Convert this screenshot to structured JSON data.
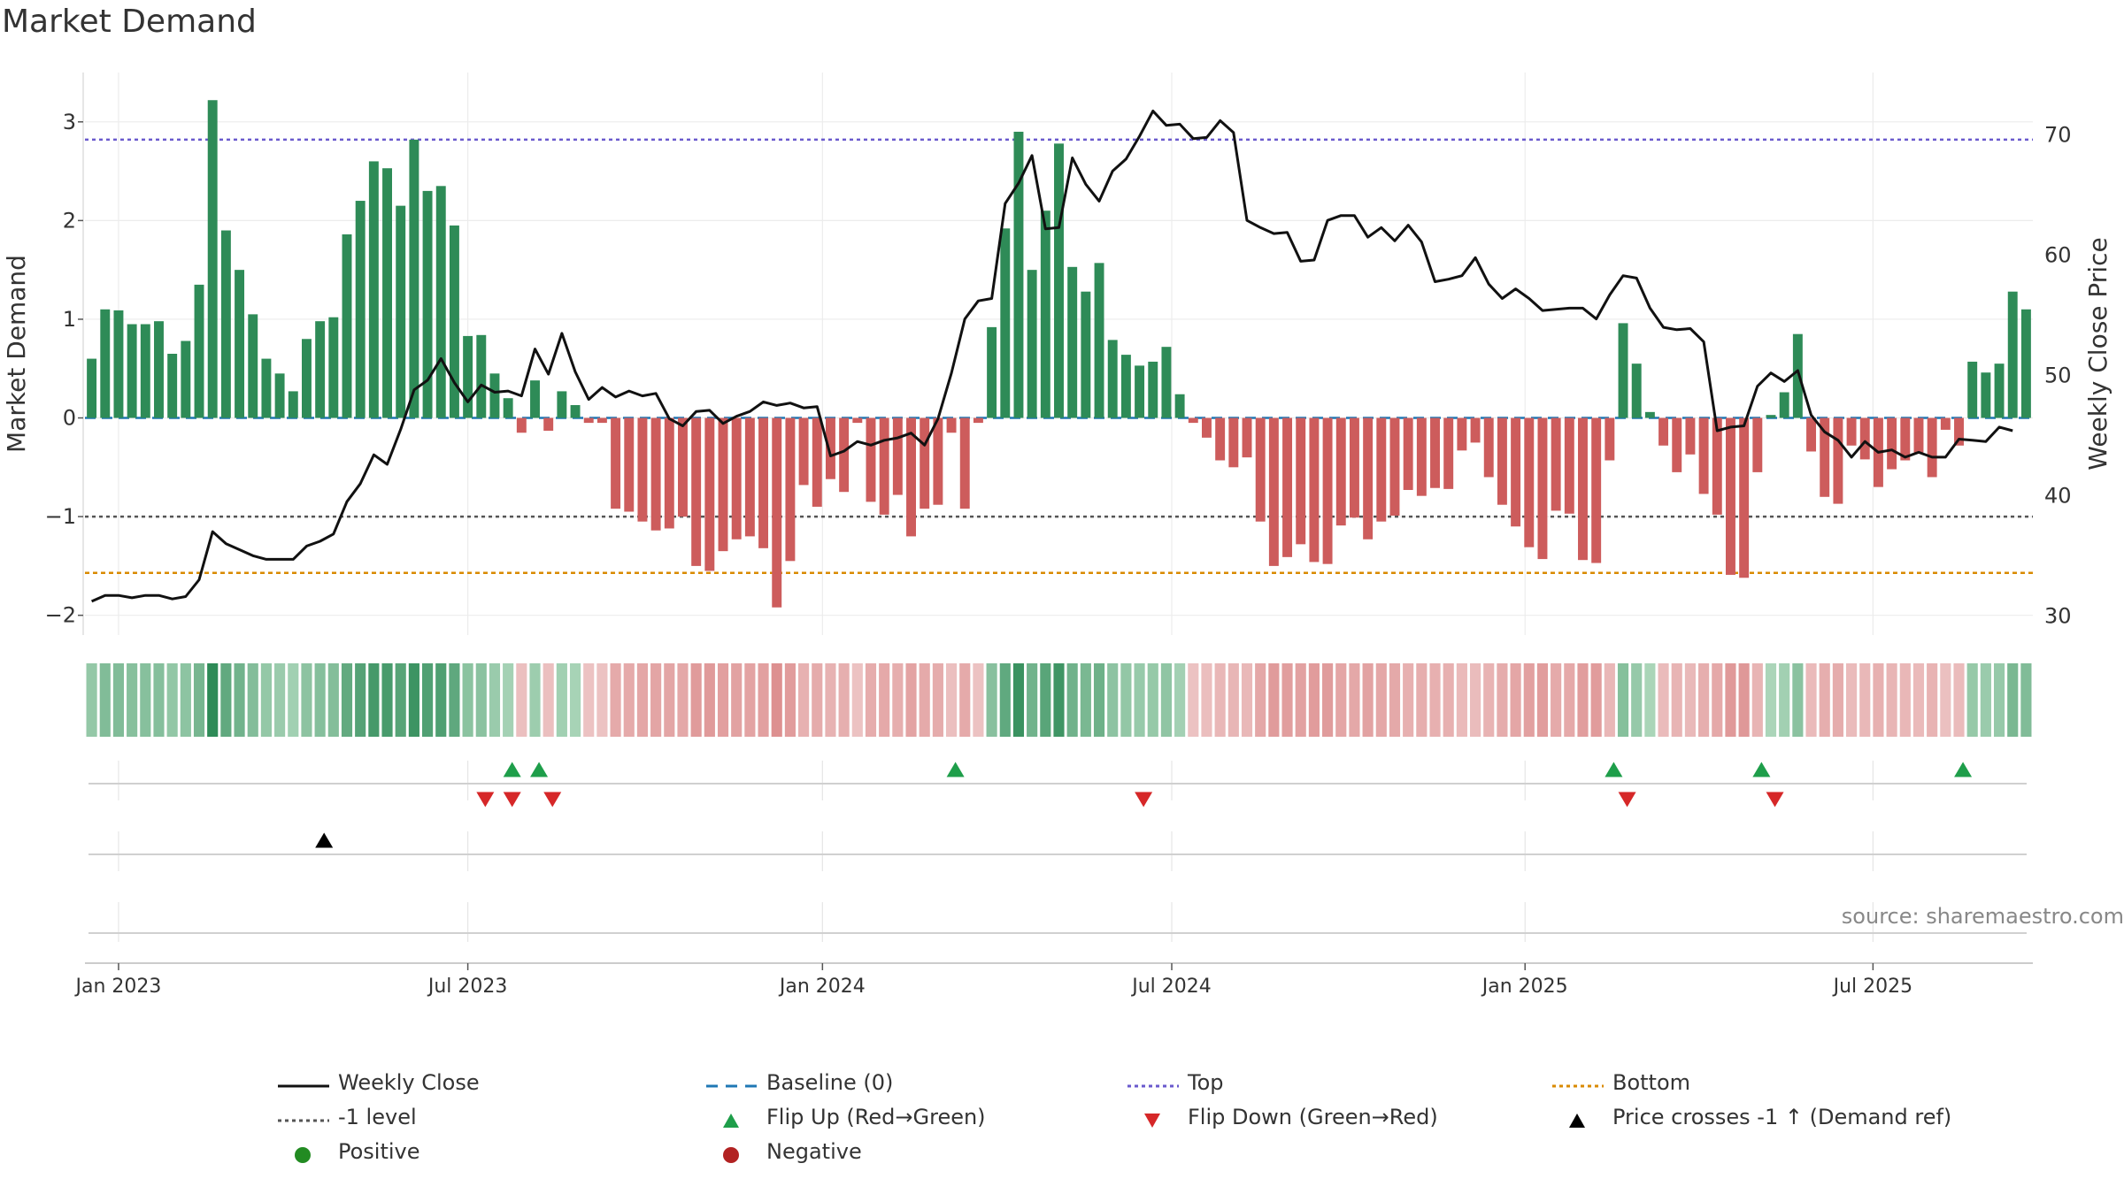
{
  "title": "Market Demand",
  "source": "source: sharemaestro.com",
  "colors": {
    "positive_bar": "#2e8b57",
    "negative_bar": "#cd5c5c",
    "close_line": "#111111",
    "baseline": "#1f77b4",
    "top_line": "#6a5acd",
    "minus1_line": "#555555",
    "bottom_line": "#d98a00",
    "flip_up": "#1e9e4a",
    "flip_down": "#d62728",
    "positive_dot": "#228b22",
    "negative_dot": "#b22222",
    "price_cross": "#000000"
  },
  "legend": [
    {
      "key": "close",
      "label": "Weekly Close",
      "icon": "line-solid"
    },
    {
      "key": "baseline",
      "label": "Baseline (0)",
      "icon": "line-dashed"
    },
    {
      "key": "top",
      "label": "Top",
      "icon": "line-dotted"
    },
    {
      "key": "bottom",
      "label": "Bottom",
      "icon": "line-dotted"
    },
    {
      "key": "minus1",
      "label": "-1 level",
      "icon": "line-dotted"
    },
    {
      "key": "flipup",
      "label": "Flip Up (Red→Green)",
      "icon": "triangle-up"
    },
    {
      "key": "flipdown",
      "label": "Flip Down (Green→Red)",
      "icon": "triangle-down"
    },
    {
      "key": "pricecross",
      "label": "Price crosses -1 ↑ (Demand ref)",
      "icon": "triangle-up"
    },
    {
      "key": "positive",
      "label": "Positive",
      "icon": "dot"
    },
    {
      "key": "negative",
      "label": "Negative",
      "icon": "dot"
    }
  ],
  "chart_data": {
    "type": "bar",
    "title": "Market Demand",
    "ylabel": "Market Demand",
    "y2label": "Weekly Close Price",
    "ylim": [
      -2.2,
      3.5
    ],
    "y2lim": [
      28.4,
      75.2
    ],
    "yticks": [
      -2,
      -1,
      0,
      1,
      2,
      3
    ],
    "yticklabels": [
      "−2",
      "−1",
      "0",
      "1",
      "2",
      "3"
    ],
    "y2ticks": [
      30,
      40,
      50,
      60,
      70
    ],
    "xticks": [
      {
        "label": "Jan 2023",
        "week": 2
      },
      {
        "label": "Jul 2023",
        "week": 28
      },
      {
        "label": "Jan 2024",
        "week": 54.4
      },
      {
        "label": "Jul 2024",
        "week": 80.4
      },
      {
        "label": "Jan 2025",
        "week": 106.7
      },
      {
        "label": "Jul 2025",
        "week": 132.6
      }
    ],
    "levels": {
      "top": 2.82,
      "minus1": -1.0,
      "bottom": -1.57,
      "baseline": 0
    },
    "demand": [
      0.6,
      1.1,
      1.09,
      0.95,
      0.95,
      0.98,
      0.65,
      0.78,
      1.35,
      3.22,
      1.9,
      1.5,
      1.05,
      0.6,
      0.45,
      0.27,
      0.8,
      0.98,
      1.02,
      1.86,
      2.2,
      2.6,
      2.53,
      2.15,
      2.82,
      2.3,
      2.35,
      1.95,
      0.83,
      0.84,
      0.45,
      0.2,
      -0.15,
      0.38,
      -0.13,
      0.27,
      0.13,
      -0.05,
      -0.05,
      -0.92,
      -0.95,
      -1.05,
      -1.14,
      -1.12,
      -1.0,
      -1.5,
      -1.55,
      -1.35,
      -1.23,
      -1.2,
      -1.32,
      -1.92,
      -1.45,
      -0.68,
      -0.9,
      -0.62,
      -0.75,
      -0.05,
      -0.85,
      -0.98,
      -0.78,
      -1.2,
      -0.92,
      -0.88,
      -0.15,
      -0.92,
      -0.05,
      0.92,
      1.92,
      2.9,
      1.5,
      2.1,
      2.78,
      1.53,
      1.28,
      1.57,
      0.79,
      0.64,
      0.53,
      0.57,
      0.72,
      0.24,
      -0.05,
      -0.2,
      -0.43,
      -0.5,
      -0.4,
      -1.05,
      -1.5,
      -1.41,
      -1.28,
      -1.46,
      -1.48,
      -1.09,
      -1.01,
      -1.23,
      -1.05,
      -0.99,
      -0.73,
      -0.79,
      -0.71,
      -0.72,
      -0.33,
      -0.25,
      -0.6,
      -0.88,
      -1.1,
      -1.31,
      -1.43,
      -0.94,
      -0.97,
      -1.44,
      -1.47,
      -0.43,
      0.96,
      0.55,
      0.06,
      -0.28,
      -0.55,
      -0.37,
      -0.77,
      -0.98,
      -1.59,
      -1.62,
      -0.55,
      0.03,
      0.26,
      0.85,
      -0.34,
      -0.8,
      -0.87,
      -0.28,
      -0.42,
      -0.7,
      -0.52,
      -0.43,
      -0.35,
      -0.6,
      -0.12,
      -0.28,
      0.57,
      0.46,
      0.55,
      1.28,
      1.1
    ],
    "close": [
      31.2,
      31.7,
      31.7,
      31.5,
      31.7,
      31.7,
      31.4,
      31.6,
      33.0,
      37.0,
      36.0,
      35.5,
      35.0,
      34.7,
      34.7,
      34.7,
      35.8,
      36.2,
      36.8,
      39.5,
      41.0,
      43.4,
      42.6,
      45.5,
      48.8,
      49.6,
      51.4,
      49.4,
      47.8,
      49.2,
      48.6,
      48.7,
      48.3,
      52.2,
      50.1,
      53.5,
      50.3,
      48.0,
      49.0,
      48.2,
      48.7,
      48.3,
      48.5,
      46.4,
      45.8,
      47.0,
      47.1,
      46.0,
      46.6,
      47.0,
      47.8,
      47.5,
      47.7,
      47.3,
      47.4,
      43.3,
      43.7,
      44.5,
      44.2,
      44.6,
      44.8,
      45.2,
      44.2,
      46.4,
      50.2,
      54.7,
      56.2,
      56.4,
      64.3,
      66.0,
      68.3,
      62.2,
      62.3,
      68.1,
      65.9,
      64.5,
      67.0,
      68.0,
      69.9,
      72.0,
      70.8,
      70.9,
      69.7,
      69.8,
      71.2,
      70.2,
      62.9,
      62.3,
      61.8,
      61.9,
      59.5,
      59.6,
      62.9,
      63.3,
      63.3,
      61.5,
      62.3,
      61.2,
      62.5,
      61.1,
      57.8,
      58.0,
      58.3,
      59.8,
      57.6,
      56.4,
      57.2,
      56.4,
      55.4,
      55.5,
      55.6,
      55.6,
      54.7,
      56.7,
      58.3,
      58.1,
      55.6,
      54.0,
      53.8,
      53.9,
      52.8,
      45.4,
      45.7,
      45.8,
      49.1,
      50.2,
      49.5,
      50.4,
      46.7,
      45.3,
      44.6,
      43.2,
      44.5,
      43.6,
      43.8,
      43.2,
      43.6,
      43.2,
      43.2,
      44.7,
      44.6,
      44.5,
      45.7,
      45.4
    ],
    "flip_up_weeks": [
      31.3,
      33.3,
      64.3,
      113.3,
      124.3,
      139.3
    ],
    "flip_down_weeks": [
      29.3,
      31.3,
      34.3,
      78.3,
      114.3,
      125.3
    ],
    "price_cross_weeks": [
      17.3
    ]
  }
}
